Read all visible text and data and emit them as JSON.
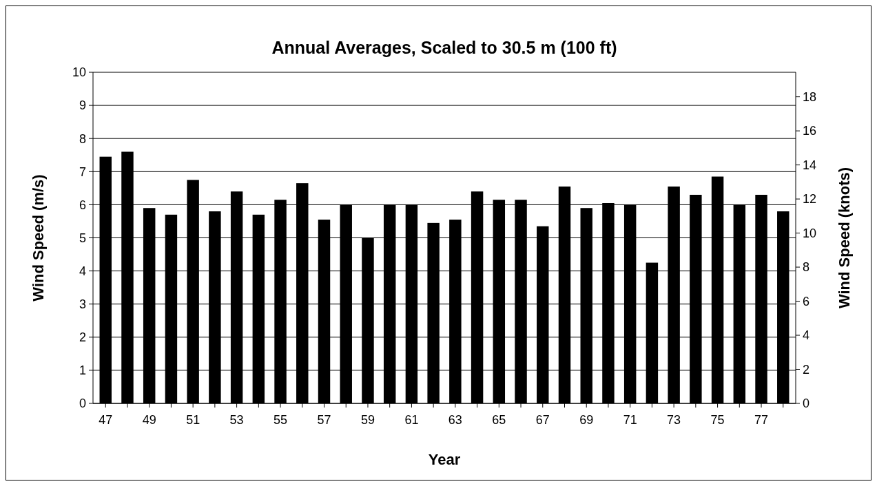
{
  "chart_data": {
    "type": "bar",
    "title": "Annual Averages, Scaled to 30.5 m (100 ft)",
    "xlabel": "Year",
    "ylabel": "Wind Speed (m/s)",
    "y2label": "Wind Speed (knots)",
    "categories": [
      "47",
      null,
      "49",
      null,
      "51",
      null,
      "53",
      null,
      "55",
      null,
      "57",
      null,
      "59",
      null,
      "61",
      null,
      "63",
      null,
      "65",
      null,
      "67",
      null,
      "69",
      null,
      "71",
      null,
      "73",
      null,
      "75",
      null,
      "77",
      null
    ],
    "values": [
      7.45,
      7.6,
      5.9,
      5.7,
      6.75,
      5.8,
      6.4,
      5.7,
      6.15,
      6.65,
      5.55,
      6.0,
      5.0,
      6.0,
      6.0,
      5.45,
      5.55,
      6.4,
      6.15,
      6.15,
      5.35,
      6.55,
      5.9,
      6.05,
      6.0,
      4.25,
      6.55,
      6.3,
      6.85,
      6.0,
      6.3,
      5.8
    ],
    "color": "#000000",
    "ylim": [
      0,
      10
    ],
    "yticks": [
      0,
      1,
      2,
      3,
      4,
      5,
      6,
      7,
      8,
      9,
      10
    ],
    "y2lim": [
      0,
      19.44
    ],
    "y2ticks": [
      0,
      2,
      4,
      6,
      8,
      10,
      12,
      14,
      16,
      18
    ],
    "grid": "y"
  }
}
